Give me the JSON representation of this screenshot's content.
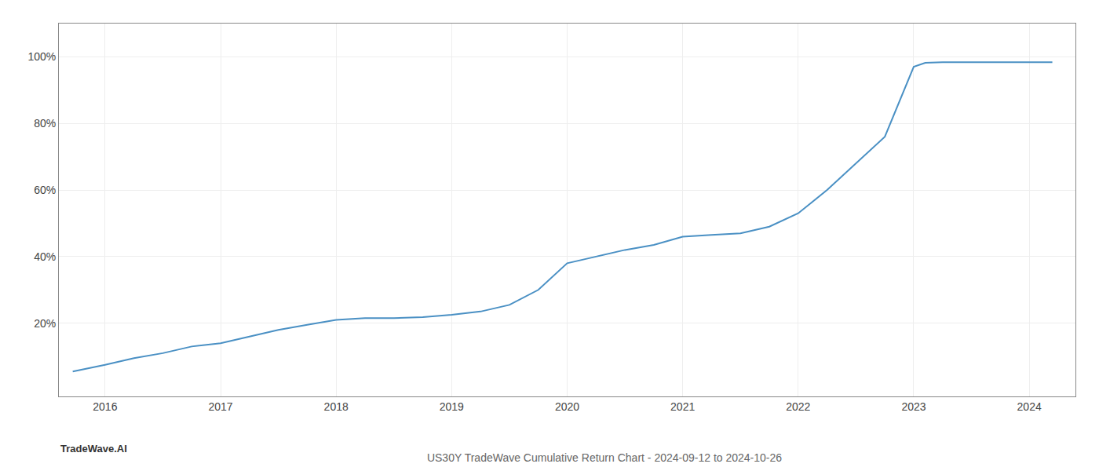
{
  "chart_data": {
    "type": "line",
    "title": "US30Y TradeWave Cumulative Return Chart - 2024-09-12 to 2024-10-26",
    "annotations": [
      "TradeWave.AI"
    ],
    "x": [
      2015.72,
      2016.0,
      2016.25,
      2016.5,
      2016.75,
      2017.0,
      2017.25,
      2017.5,
      2017.75,
      2018.0,
      2018.25,
      2018.5,
      2018.75,
      2019.0,
      2019.25,
      2019.5,
      2019.75,
      2020.0,
      2020.25,
      2020.5,
      2020.75,
      2021.0,
      2021.25,
      2021.5,
      2021.75,
      2022.0,
      2022.25,
      2022.5,
      2022.75,
      2023.0,
      2023.1,
      2023.25,
      2023.5,
      2023.75,
      2024.0,
      2024.2
    ],
    "values": [
      5.5,
      7.5,
      9.5,
      11,
      13,
      14,
      16,
      18,
      19.5,
      21,
      21.5,
      21.5,
      21.8,
      22.5,
      23.5,
      25.5,
      30,
      38,
      40,
      42,
      43.5,
      46,
      46.5,
      47,
      49,
      53,
      60,
      68,
      76,
      97,
      98.2,
      98.4,
      98.4,
      98.4,
      98.4,
      98.4
    ],
    "color": "#4a90c4",
    "xlim": [
      2015.6,
      2024.4
    ],
    "ylim": [
      -2,
      110
    ],
    "xticks": [
      2016,
      2017,
      2018,
      2019,
      2020,
      2021,
      2022,
      2023,
      2024
    ],
    "yticks": [
      {
        "value": 20,
        "label": "20%"
      },
      {
        "value": 40,
        "label": "40%"
      },
      {
        "value": 60,
        "label": "60%"
      },
      {
        "value": 80,
        "label": "80%"
      },
      {
        "value": 100,
        "label": "100%"
      }
    ],
    "grid": true
  }
}
